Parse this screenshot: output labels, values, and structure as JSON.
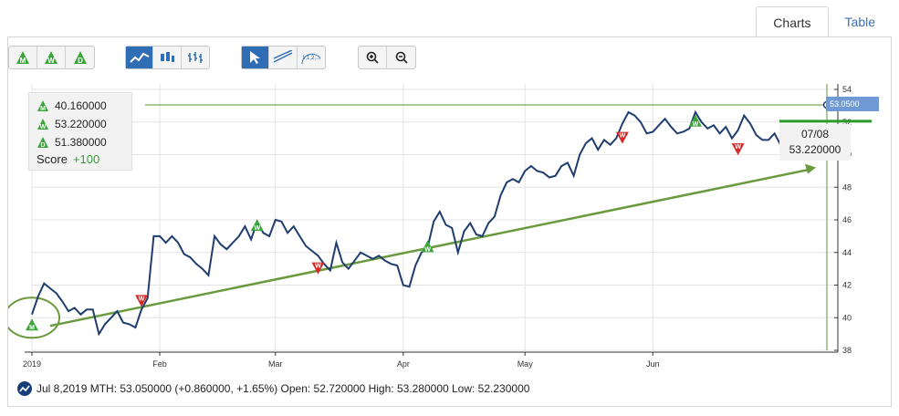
{
  "tabs": [
    {
      "label": "Charts",
      "active": true
    },
    {
      "label": "Table",
      "active": false
    }
  ],
  "toolbar": {
    "group1": [
      {
        "name": "monthly-signal-button",
        "letter": "M"
      },
      {
        "name": "weekly-signal-button",
        "letter": "W"
      },
      {
        "name": "daily-signal-button",
        "letter": "D"
      }
    ],
    "group2": [
      "line-chart-button",
      "candlestick-button",
      "ohlc-button"
    ],
    "group3": [
      "cursor-button",
      "trendline-button",
      "fibonacci-button"
    ],
    "group4": [
      "zoom-in-button",
      "zoom-out-button"
    ],
    "fib_label": "1,1,2,..."
  },
  "legend": {
    "rows": [
      {
        "letter": "M",
        "value": "40.160000"
      },
      {
        "letter": "W",
        "value": "53.220000"
      },
      {
        "letter": "D",
        "value": "51.380000"
      }
    ],
    "score_label": "Score",
    "score_value": "+100"
  },
  "tooltip": {
    "date": "07/08",
    "value": "53.220000"
  },
  "price_tag": "53.0500",
  "footer": {
    "text": "Jul 8,2019 MTH: 53.050000 (+0.860000, +1.65%) Open: 52.720000 High: 53.280000 Low: 52.230000"
  },
  "colors": {
    "line": "#1f3d6e",
    "trend": "#6a9a3e",
    "buy": "#3aa63a",
    "sell": "#d42a2a",
    "accent": "#2f6eb5",
    "ref_line": "#78a85a"
  },
  "chart_data": {
    "type": "line",
    "ylim": [
      38,
      54
    ],
    "yticks": [
      38,
      40,
      42,
      44,
      46,
      48,
      50,
      52,
      54
    ],
    "xticks": [
      {
        "label": "2019",
        "i": 0
      },
      {
        "label": "Feb",
        "i": 21
      },
      {
        "label": "Mar",
        "i": 40
      },
      {
        "label": "Apr",
        "i": 61
      },
      {
        "label": "May",
        "i": 81
      },
      {
        "label": "Jun",
        "i": 102
      }
    ],
    "series": [
      {
        "values": [
          40.2,
          41.3,
          42.1,
          41.8,
          41.5,
          41.0,
          40.4,
          40.6,
          40.2,
          40.5,
          40.5,
          39.0,
          39.6,
          40.0,
          40.4,
          39.7,
          39.6,
          39.4,
          40.5,
          41.2,
          45.0,
          45.0,
          44.6,
          45.0,
          44.6,
          43.9,
          43.7,
          43.3,
          43.0,
          42.6,
          45.0,
          44.5,
          44.2,
          44.6,
          45.0,
          45.6,
          44.8,
          45.9,
          45.2,
          45.0,
          46.0,
          45.9,
          45.2,
          45.6,
          45.0,
          44.4,
          44.1,
          43.8,
          43.3,
          42.9,
          44.6,
          43.4,
          43.0,
          43.5,
          44.0,
          43.8,
          43.6,
          43.8,
          43.5,
          43.3,
          43.2,
          42.0,
          41.9,
          43.2,
          44.0,
          44.3,
          45.9,
          46.5,
          45.7,
          45.5,
          44.0,
          45.3,
          45.8,
          45.1,
          45.0,
          45.8,
          46.2,
          47.5,
          48.3,
          48.5,
          48.3,
          49.0,
          49.3,
          49.0,
          48.9,
          48.6,
          48.7,
          49.3,
          49.5,
          48.7,
          50.0,
          50.7,
          51.0,
          50.3,
          50.9,
          50.6,
          51.0,
          51.9,
          52.6,
          52.4,
          52.0,
          51.3,
          51.4,
          51.8,
          52.2,
          51.7,
          51.3,
          51.4,
          51.6,
          52.6,
          52.0,
          51.6,
          51.8,
          51.3,
          51.7,
          51.0,
          51.5,
          52.4,
          51.9,
          51.2,
          50.9,
          50.9,
          51.3,
          50.6,
          50.7,
          51.1,
          50.4,
          51.4,
          51.6,
          51.0,
          50.3
        ],
        "notes": "approximate daily closes read from chart"
      }
    ],
    "signals": [
      {
        "type": "buy",
        "letter": "M",
        "i": 0,
        "value": 39.5
      },
      {
        "type": "sell",
        "letter": "W",
        "i": 18,
        "value": 41.0
      },
      {
        "type": "buy",
        "letter": "W",
        "i": 37,
        "value": 45.6
      },
      {
        "type": "sell",
        "letter": "W",
        "i": 47,
        "value": 43.0
      },
      {
        "type": "buy",
        "letter": "W",
        "i": 65,
        "value": 44.3
      },
      {
        "type": "sell",
        "letter": "W",
        "i": 97,
        "value": 51.0
      },
      {
        "type": "buy",
        "letter": "W",
        "i": 109,
        "value": 52.0
      },
      {
        "type": "sell",
        "letter": "W",
        "i": 116,
        "value": 50.3
      }
    ]
  }
}
